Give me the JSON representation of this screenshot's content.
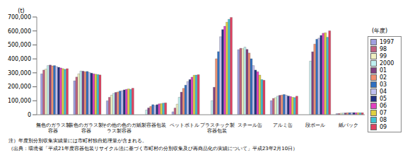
{
  "chart_data": {
    "type": "bar",
    "y_label": "(t)",
    "legend_title": "(年度)",
    "legend": "right",
    "grid": false,
    "ylim": [
      0,
      700000
    ],
    "yticks": [
      0,
      {
        "value": 100000,
        "label": "100,000"
      },
      {
        "value": 200000,
        "label": "200,000"
      },
      {
        "value": 300000,
        "label": "300,000"
      },
      {
        "value": 400000,
        "label": "400,000"
      },
      {
        "value": 500000,
        "label": "500,000"
      },
      {
        "value": 600000,
        "label": "600,000"
      },
      {
        "value": 700000,
        "label": "700,000"
      }
    ],
    "categories": [
      "無色のガラス製容器",
      "茶色のガラス製容器",
      "その他の色のガラス製容器",
      "紙製容器包装",
      "ペットボトル",
      "プラスチック製容器包装",
      "スチール缶",
      "アルミ缶",
      "段ボール",
      "紙パック"
    ],
    "series": [
      {
        "name": "1997",
        "color": "#a0a0e0",
        "values": [
          293000,
          243000,
          100000,
          null,
          21000,
          null,
          466000,
          101000,
          null,
          8000
        ]
      },
      {
        "name": "98",
        "color": "#c06080",
        "values": [
          320000,
          270000,
          125000,
          null,
          48000,
          null,
          476000,
          117000,
          null,
          9000
        ]
      },
      {
        "name": "99",
        "color": "#f0f0c0",
        "values": [
          327000,
          293000,
          140000,
          null,
          76000,
          null,
          473000,
          122000,
          null,
          11000
        ]
      },
      {
        "name": "2000",
        "color": "#c0f0f0",
        "values": [
          352000,
          313000,
          153000,
          34000,
          125000,
          101000,
          484000,
          133000,
          384000,
          12000
        ]
      },
      {
        "name": "01",
        "color": "#804080",
        "values": [
          356000,
          312000,
          160000,
          49000,
          162000,
          197000,
          468000,
          139000,
          451000,
          13000
        ]
      },
      {
        "name": "02",
        "color": "#f09070",
        "values": [
          350000,
          308000,
          163000,
          60000,
          189000,
          401000,
          442000,
          141000,
          506000,
          14000
        ]
      },
      {
        "name": "03",
        "color": "#3070c0",
        "values": [
          352000,
          310000,
          170000,
          72000,
          212000,
          452000,
          401000,
          145000,
          541000,
          14500
        ]
      },
      {
        "name": "04",
        "color": "#c0c0f0",
        "values": [
          345000,
          302000,
          172000,
          66000,
          238000,
          559000,
          352000,
          140000,
          549000,
          15000
        ]
      },
      {
        "name": "05",
        "color": "#203080",
        "values": [
          340000,
          298000,
          178000,
          72000,
          252000,
          610000,
          320000,
          134000,
          568000,
          15000
        ]
      },
      {
        "name": "06",
        "color": "#e040c0",
        "values": [
          335000,
          293000,
          182000,
          78000,
          269000,
          634000,
          308000,
          131000,
          584000,
          14500
        ]
      },
      {
        "name": "07",
        "color": "#e0d040",
        "values": [
          330000,
          290000,
          185000,
          80000,
          283000,
          663000,
          284000,
          125000,
          587000,
          14500
        ]
      },
      {
        "name": "08",
        "color": "#40c0d0",
        "values": [
          325000,
          288000,
          182000,
          83000,
          284000,
          684000,
          252000,
          123000,
          555000,
          14000
        ]
      },
      {
        "name": "09",
        "color": "#e04060",
        "values": [
          330000,
          285000,
          190000,
          85000,
          287000,
          697000,
          247000,
          133000,
          601000,
          14000
        ]
      }
    ],
    "annotations": [
      "注）年度別分別収集実績量には市町村独自処理量が含まれる。",
      "（出典：環境省「平成21年度容器包装リサイクル法に基づく市町村の分別収集及び再商品化の実績について」平成23年2月10日）"
    ]
  }
}
